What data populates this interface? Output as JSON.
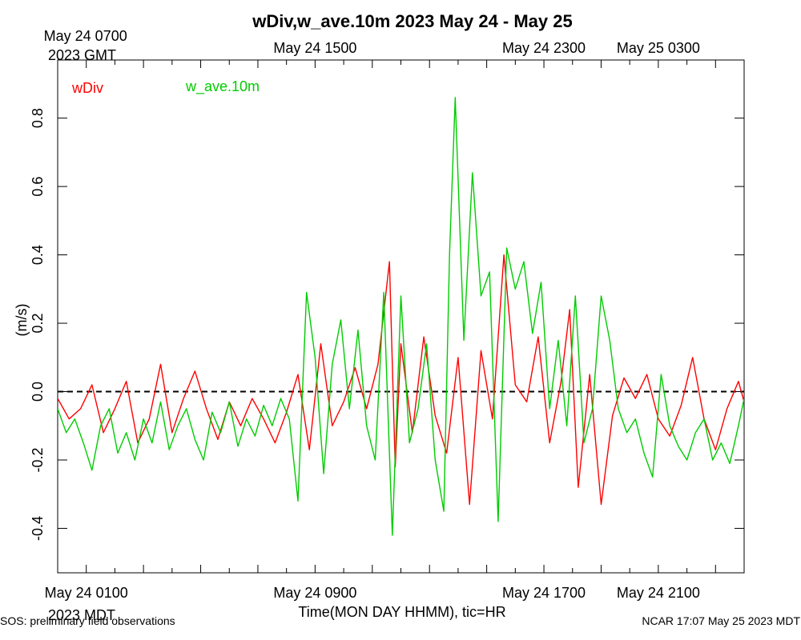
{
  "chart_data": {
    "type": "line",
    "title": "wDiv,w_ave.10m 2023 May 24 - May 25",
    "xlabel": "Time(MON DAY HHMM), tic=HR",
    "ylabel": "(m/s)",
    "ylim": [
      -0.53,
      0.97
    ],
    "y_ticks": [
      -0.4,
      -0.2,
      0.0,
      0.2,
      0.4,
      0.6,
      0.8
    ],
    "y_tick_labels": [
      "-0.4",
      "-0.2",
      "0.0",
      "0.2",
      "0.4",
      "0.6",
      "0.8"
    ],
    "x_range_hours": [
      0,
      24
    ],
    "top_axis": {
      "labels": [
        {
          "hour": 1,
          "line1": "May 24 0700",
          "line2": "2023 GMT"
        },
        {
          "hour": 9,
          "line1": "May 24 1500",
          "line2": ""
        },
        {
          "hour": 17,
          "line1": "May 24 2300",
          "line2": ""
        },
        {
          "hour": 21,
          "line1": "May 25 0300",
          "line2": ""
        }
      ]
    },
    "bottom_axis": {
      "labels": [
        {
          "hour": 1,
          "line1": "May 24 0100",
          "line2": "2023 MDT"
        },
        {
          "hour": 9,
          "line1": "May 24 0900",
          "line2": ""
        },
        {
          "hour": 17,
          "line1": "May 24 1700",
          "line2": ""
        },
        {
          "hour": 21,
          "line1": "May 24 2100",
          "line2": ""
        }
      ]
    },
    "zero_line": {
      "y": 0.0,
      "style": "dashed"
    },
    "legend_placement": "top-left",
    "series": [
      {
        "name": "wDiv",
        "color": "#ff0000",
        "x": [
          0.0,
          0.4,
          0.8,
          1.2,
          1.6,
          2.0,
          2.4,
          2.8,
          3.2,
          3.6,
          4.0,
          4.4,
          4.8,
          5.2,
          5.6,
          6.0,
          6.4,
          6.8,
          7.2,
          7.6,
          8.0,
          8.4,
          8.8,
          9.2,
          9.6,
          10.0,
          10.4,
          10.8,
          11.2,
          11.6,
          11.8,
          12.0,
          12.4,
          12.8,
          13.2,
          13.6,
          14.0,
          14.4,
          14.8,
          15.2,
          15.6,
          16.0,
          16.4,
          16.8,
          17.2,
          17.6,
          17.9,
          18.2,
          18.6,
          19.0,
          19.4,
          19.8,
          20.2,
          20.6,
          21.0,
          21.4,
          21.8,
          22.2,
          22.6,
          23.0,
          23.4,
          23.8,
          24.0
        ],
        "values": [
          -0.02,
          -0.08,
          -0.05,
          0.02,
          -0.12,
          -0.05,
          0.03,
          -0.15,
          -0.08,
          0.08,
          -0.12,
          -0.02,
          0.06,
          -0.05,
          -0.14,
          -0.03,
          -0.1,
          -0.02,
          -0.08,
          -0.15,
          -0.06,
          0.05,
          -0.17,
          0.14,
          -0.1,
          -0.03,
          0.07,
          -0.05,
          0.08,
          0.38,
          -0.22,
          0.14,
          -0.12,
          0.16,
          -0.07,
          -0.18,
          0.1,
          -0.33,
          0.12,
          -0.08,
          0.4,
          0.02,
          -0.03,
          0.16,
          -0.15,
          0.03,
          0.24,
          -0.28,
          0.05,
          -0.33,
          -0.07,
          0.04,
          -0.02,
          0.05,
          -0.08,
          -0.13,
          -0.04,
          0.1,
          -0.08,
          -0.17,
          -0.05,
          0.03,
          -0.03
        ]
      },
      {
        "name": "w_ave.10m",
        "color": "#00cc00",
        "x": [
          0.0,
          0.3,
          0.6,
          0.9,
          1.2,
          1.5,
          1.8,
          2.1,
          2.4,
          2.7,
          3.0,
          3.3,
          3.6,
          3.9,
          4.2,
          4.5,
          4.8,
          5.1,
          5.4,
          5.7,
          6.0,
          6.3,
          6.6,
          6.9,
          7.2,
          7.5,
          7.8,
          8.1,
          8.4,
          8.7,
          9.0,
          9.3,
          9.6,
          9.9,
          10.2,
          10.5,
          10.8,
          11.1,
          11.4,
          11.7,
          12.0,
          12.3,
          12.6,
          12.9,
          13.2,
          13.5,
          13.7,
          13.9,
          14.2,
          14.5,
          14.8,
          15.1,
          15.4,
          15.7,
          16.0,
          16.3,
          16.6,
          16.9,
          17.2,
          17.5,
          17.8,
          18.1,
          18.4,
          18.7,
          19.0,
          19.3,
          19.6,
          19.9,
          20.2,
          20.5,
          20.8,
          21.1,
          21.4,
          21.7,
          22.0,
          22.3,
          22.6,
          22.9,
          23.2,
          23.5,
          23.8,
          24.0
        ],
        "values": [
          -0.05,
          -0.12,
          -0.08,
          -0.15,
          -0.23,
          -0.1,
          -0.05,
          -0.18,
          -0.12,
          -0.2,
          -0.08,
          -0.15,
          -0.03,
          -0.17,
          -0.1,
          -0.05,
          -0.14,
          -0.2,
          -0.06,
          -0.12,
          -0.03,
          -0.16,
          -0.08,
          -0.13,
          -0.04,
          -0.1,
          -0.02,
          -0.08,
          -0.32,
          0.29,
          0.1,
          -0.24,
          0.08,
          0.21,
          -0.05,
          0.18,
          -0.1,
          -0.2,
          0.29,
          -0.42,
          0.28,
          -0.15,
          -0.05,
          0.14,
          -0.2,
          -0.35,
          0.4,
          0.86,
          0.15,
          0.64,
          0.28,
          0.35,
          -0.38,
          0.42,
          0.3,
          0.38,
          0.17,
          0.32,
          -0.05,
          0.15,
          -0.1,
          0.28,
          -0.15,
          -0.05,
          0.28,
          0.15,
          -0.05,
          -0.12,
          -0.08,
          -0.18,
          -0.25,
          0.05,
          -0.1,
          -0.16,
          -0.2,
          -0.12,
          -0.08,
          -0.2,
          -0.15,
          -0.21,
          -0.1,
          -0.02
        ]
      }
    ],
    "footer_left": "SOS: preliminary field observations",
    "footer_right": "NCAR 17:07 May 25 2023 MDT"
  }
}
